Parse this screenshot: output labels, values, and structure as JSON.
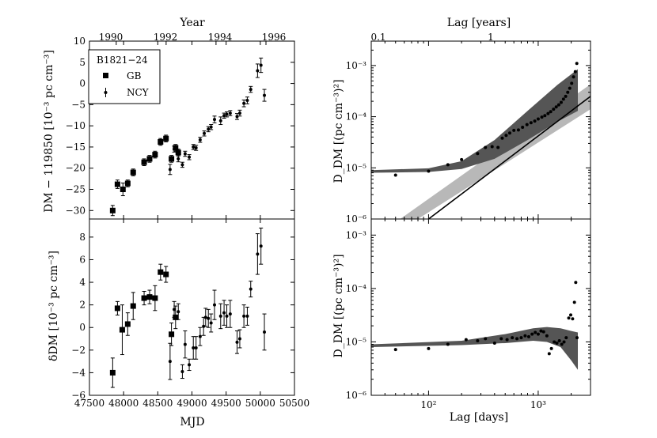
{
  "figure": {
    "year_axis_label": "Year",
    "year_ticks": [
      "1990",
      "1992",
      "1994",
      "1996"
    ],
    "lag_years_axis_label": "Lag [years]",
    "lag_years_ticks": [
      "0.1",
      "1"
    ]
  },
  "chart_data": [
    {
      "id": "dm-vs-mjd",
      "type": "scatter",
      "ylabel": "DM − 119850 [10⁻³ pc cm⁻³]",
      "xlabel": "",
      "xlim": [
        47500,
        50500
      ],
      "ylim": [
        -32,
        10
      ],
      "yticks": [
        -30,
        -25,
        -20,
        -15,
        -10,
        -5,
        0,
        5,
        10
      ],
      "legend": {
        "title": "B1821−24",
        "entries": [
          "GB",
          "NCY"
        ],
        "placement": "top-left"
      },
      "series": [
        {
          "name": "GB",
          "marker": "square",
          "points": [
            [
              47840,
              -30.0,
              1.2
            ],
            [
              47910,
              -23.8,
              1.0
            ],
            [
              47990,
              -25.0,
              1.5
            ],
            [
              48060,
              -23.6,
              0.8
            ],
            [
              48140,
              -21.0,
              0.8
            ],
            [
              48300,
              -18.6,
              0.8
            ],
            [
              48380,
              -17.8,
              0.8
            ],
            [
              48460,
              -16.8,
              0.8
            ],
            [
              48540,
              -13.8,
              0.8
            ],
            [
              48620,
              -13.0,
              0.8
            ],
            [
              48700,
              -17.8,
              0.8
            ],
            [
              48760,
              -15.2,
              0.8
            ],
            [
              48800,
              -16.3,
              0.8
            ]
          ]
        },
        {
          "name": "NCY",
          "marker": "dot",
          "points": [
            [
              48680,
              -20.3,
              1.2
            ],
            [
              48740,
              -15.5,
              0.7
            ],
            [
              48800,
              -17.8,
              0.7
            ],
            [
              48860,
              -19.2,
              0.6
            ],
            [
              48900,
              -16.6,
              0.6
            ],
            [
              48960,
              -17.4,
              0.6
            ],
            [
              49020,
              -15.0,
              0.6
            ],
            [
              49060,
              -15.2,
              0.6
            ],
            [
              49120,
              -13.3,
              0.6
            ],
            [
              49180,
              -11.8,
              0.6
            ],
            [
              49240,
              -10.8,
              0.6
            ],
            [
              49280,
              -10.3,
              0.6
            ],
            [
              49330,
              -8.5,
              0.8
            ],
            [
              49420,
              -8.8,
              0.9
            ],
            [
              49470,
              -7.6,
              0.6
            ],
            [
              49510,
              -7.3,
              0.6
            ],
            [
              49560,
              -7.0,
              0.6
            ],
            [
              49660,
              -7.8,
              0.7
            ],
            [
              49700,
              -7.0,
              0.7
            ],
            [
              49760,
              -4.7,
              0.8
            ],
            [
              49810,
              -4.0,
              0.8
            ],
            [
              49860,
              -1.4,
              0.7
            ],
            [
              49960,
              3.0,
              1.6
            ],
            [
              50010,
              4.3,
              1.7
            ],
            [
              50060,
              -2.8,
              1.4
            ]
          ]
        }
      ]
    },
    {
      "id": "delta-dm-vs-mjd",
      "type": "scatter",
      "ylabel": "δDM [10⁻³ pc cm⁻³]",
      "xlabel": "MJD",
      "xlim": [
        47500,
        50500
      ],
      "ylim": [
        -6,
        9.6
      ],
      "yticks": [
        -6,
        -4,
        -2,
        0,
        2,
        4,
        6,
        8
      ],
      "xticks": [
        47500,
        48000,
        48500,
        49000,
        49500,
        50000,
        50500
      ],
      "series": [
        {
          "name": "GB",
          "marker": "square",
          "points": [
            [
              47840,
              -4.0,
              1.3
            ],
            [
              47910,
              1.7,
              0.6
            ],
            [
              47980,
              -0.2,
              2.2
            ],
            [
              48060,
              0.3,
              1.0
            ],
            [
              48140,
              1.9,
              1.2
            ],
            [
              48300,
              2.6,
              0.6
            ],
            [
              48380,
              2.7,
              0.6
            ],
            [
              48460,
              2.6,
              1.1
            ],
            [
              48540,
              4.9,
              0.7
            ],
            [
              48620,
              4.7,
              0.7
            ],
            [
              48700,
              -0.6,
              1.0
            ],
            [
              48760,
              0.9,
              1.0
            ]
          ]
        },
        {
          "name": "NCY",
          "marker": "dot",
          "points": [
            [
              48680,
              -3.0,
              1.6
            ],
            [
              48740,
              1.6,
              0.7
            ],
            [
              48800,
              1.4,
              0.7
            ],
            [
              48860,
              -3.9,
              0.6
            ],
            [
              48900,
              -1.5,
              1.2
            ],
            [
              48960,
              -3.3,
              0.5
            ],
            [
              49020,
              -1.8,
              1.0
            ],
            [
              49060,
              -1.8,
              1.0
            ],
            [
              49120,
              -0.8,
              0.8
            ],
            [
              49170,
              0.1,
              0.8
            ],
            [
              49200,
              0.9,
              0.8
            ],
            [
              49240,
              0.8,
              0.8
            ],
            [
              49280,
              0.4,
              0.8
            ],
            [
              49330,
              2.0,
              1.3
            ],
            [
              49420,
              1.0,
              1.1
            ],
            [
              49470,
              1.3,
              1.1
            ],
            [
              49510,
              1.0,
              1.0
            ],
            [
              49560,
              1.2,
              1.2
            ],
            [
              49660,
              -1.3,
              1.0
            ],
            [
              49700,
              -1.0,
              0.8
            ],
            [
              49760,
              1.0,
              1.0
            ],
            [
              49810,
              1.0,
              0.8
            ],
            [
              49860,
              3.4,
              0.7
            ],
            [
              49960,
              6.5,
              1.8
            ],
            [
              50010,
              7.2,
              1.6
            ],
            [
              50060,
              -0.4,
              1.6
            ]
          ]
        }
      ]
    },
    {
      "id": "structure-function-top",
      "type": "scatter",
      "xscale": "log",
      "yscale": "log",
      "xlabel": "",
      "ylabel": "D_DM [(pc cm⁻³)²]",
      "xlim": [
        30,
        3000
      ],
      "ylim": [
        1e-06,
        0.003
      ],
      "yticks_exponents": [
        -6,
        -5,
        -4,
        -3
      ],
      "bands": [
        {
          "name": "dark model band",
          "color": "#555555",
          "lower": [
            [
              30,
              8e-06
            ],
            [
              100,
              8.3e-06
            ],
            [
              200,
              9.5e-06
            ],
            [
              400,
              1.5e-05
            ],
            [
              800,
              3.5e-05
            ],
            [
              1500,
              8e-05
            ],
            [
              2300,
              0.00013
            ]
          ],
          "upper": [
            [
              30,
              9e-06
            ],
            [
              100,
              9.8e-06
            ],
            [
              200,
              1.35e-05
            ],
            [
              400,
              3.5e-05
            ],
            [
              800,
              0.00013
            ],
            [
              1500,
              0.00042
            ],
            [
              2300,
              0.00085
            ]
          ]
        },
        {
          "name": "light power-law band",
          "color": "#b8b8b8",
          "lower": [
            [
              80,
              1e-06
            ],
            [
              3000,
              0.00014
            ]
          ],
          "upper": [
            [
              55,
              1e-06
            ],
            [
              3000,
              0.00043
            ]
          ]
        }
      ],
      "line": {
        "name": "power law fit",
        "points": [
          [
            100,
            1e-06
          ],
          [
            3000,
            0.00025
          ]
        ]
      },
      "points": [
        [
          50,
          7.2e-06
        ],
        [
          100,
          8.6e-06
        ],
        [
          150,
          1.15e-05
        ],
        [
          200,
          1.45e-05
        ],
        [
          280,
          1.9e-05
        ],
        [
          330,
          2.5e-05
        ],
        [
          380,
          2.6e-05
        ],
        [
          430,
          2.5e-05
        ],
        [
          470,
          3.8e-05
        ],
        [
          510,
          4.3e-05
        ],
        [
          550,
          4.8e-05
        ],
        [
          600,
          5.4e-05
        ],
        [
          660,
          5.5e-05
        ],
        [
          720,
          6.2e-05
        ],
        [
          790,
          7e-05
        ],
        [
          860,
          7.6e-05
        ],
        [
          930,
          8.2e-05
        ],
        [
          1000,
          9e-05
        ],
        [
          1080,
          9.8e-05
        ],
        [
          1150,
          0.000105
        ],
        [
          1230,
          0.000115
        ],
        [
          1300,
          0.000125
        ],
        [
          1380,
          0.00014
        ],
        [
          1460,
          0.000155
        ],
        [
          1540,
          0.00017
        ],
        [
          1620,
          0.00019
        ],
        [
          1700,
          0.00022
        ],
        [
          1780,
          0.00025
        ],
        [
          1860,
          0.0003
        ],
        [
          1940,
          0.00036
        ],
        [
          2020,
          0.00045
        ],
        [
          2100,
          0.0006
        ],
        [
          2180,
          0.00076
        ],
        [
          2250,
          0.0011
        ]
      ]
    },
    {
      "id": "structure-function-bottom",
      "type": "scatter",
      "xscale": "log",
      "yscale": "log",
      "xlabel": "Lag [days]",
      "ylabel": "D_DM [(pc cm⁻³)²]",
      "xlim": [
        30,
        3000
      ],
      "ylim": [
        1e-06,
        0.002
      ],
      "yticks_exponents": [
        -6,
        -5,
        -4,
        -3
      ],
      "xticks_exponents": [
        2,
        3
      ],
      "bands": [
        {
          "name": "dark model band",
          "color": "#555555",
          "lower": [
            [
              30,
              8e-06
            ],
            [
              200,
              8.7e-06
            ],
            [
              500,
              9.5e-06
            ],
            [
              900,
              1.05e-05
            ],
            [
              1200,
              1e-05
            ],
            [
              1600,
              8e-06
            ],
            [
              2000,
              4.5e-06
            ],
            [
              2300,
              3e-06
            ]
          ],
          "upper": [
            [
              30,
              9e-06
            ],
            [
              200,
              1.05e-05
            ],
            [
              500,
              1.4e-05
            ],
            [
              900,
              1.8e-05
            ],
            [
              1200,
              1.9e-05
            ],
            [
              1600,
              1.8e-05
            ],
            [
              2000,
              1.6e-05
            ],
            [
              2300,
              1.5e-05
            ]
          ]
        }
      ],
      "points": [
        [
          50,
          7.2e-06
        ],
        [
          100,
          7.5e-06
        ],
        [
          150,
          9e-06
        ],
        [
          220,
          1.1e-05
        ],
        [
          280,
          1.05e-05
        ],
        [
          330,
          1.15e-05
        ],
        [
          400,
          9.5e-06
        ],
        [
          460,
          1.15e-05
        ],
        [
          520,
          1.1e-05
        ],
        [
          580,
          1.2e-05
        ],
        [
          640,
          1.15e-05
        ],
        [
          700,
          1.2e-05
        ],
        [
          760,
          1.3e-05
        ],
        [
          820,
          1.25e-05
        ],
        [
          880,
          1.4e-05
        ],
        [
          940,
          1.5e-05
        ],
        [
          1000,
          1.4e-05
        ],
        [
          1060,
          1.6e-05
        ],
        [
          1120,
          1.55e-05
        ],
        [
          1200,
          1.3e-05
        ],
        [
          1260,
          6e-06
        ],
        [
          1320,
          7.5e-06
        ],
        [
          1400,
          1e-05
        ],
        [
          1480,
          9.5e-06
        ],
        [
          1560,
          1.05e-05
        ],
        [
          1640,
          9e-06
        ],
        [
          1720,
          1e-05
        ],
        [
          1800,
          1.2e-05
        ],
        [
          1900,
          2.8e-05
        ],
        [
          1980,
          3.2e-05
        ],
        [
          2060,
          2.7e-05
        ],
        [
          2140,
          5.5e-05
        ],
        [
          2200,
          0.00013
        ],
        [
          2260,
          1.2e-05
        ]
      ]
    }
  ]
}
